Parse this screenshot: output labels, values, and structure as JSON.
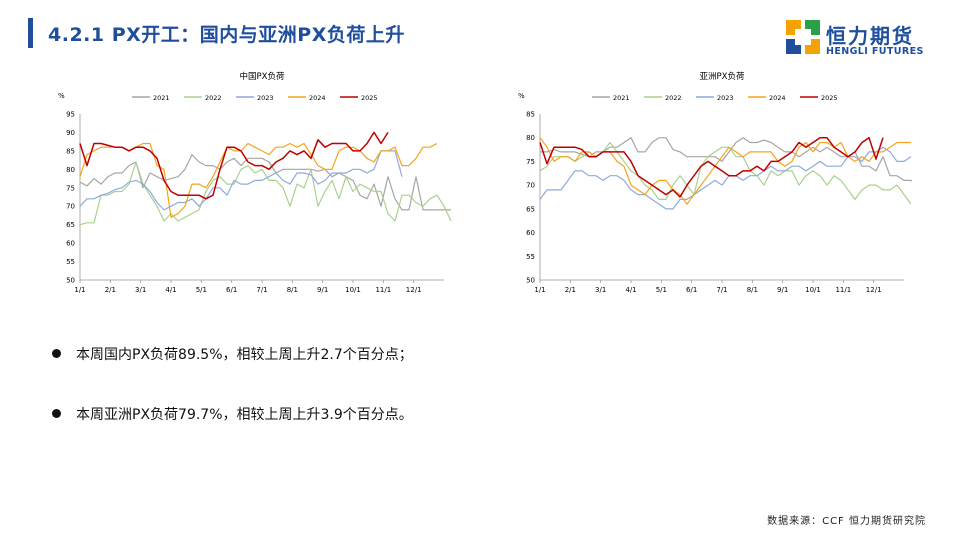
{
  "header": {
    "title": "4.2.1 PX开工：国内与亚洲PX负荷上升"
  },
  "logo": {
    "cn": "恒力期货",
    "en": "HENGLI FUTURES",
    "colors": [
      "#f5a300",
      "#2aa048",
      "#1f4e9c"
    ]
  },
  "colors": {
    "2021": "#a6a6a6",
    "2022": "#a9d18e",
    "2023": "#8faadc",
    "2024": "#f4a41c",
    "2025": "#c00000"
  },
  "chart_data": [
    {
      "type": "line",
      "title": "中国PX负荷",
      "ylabel": "%",
      "ylim": [
        50,
        95
      ],
      "yticks": [
        50,
        55,
        60,
        65,
        70,
        75,
        80,
        85,
        90,
        95
      ],
      "xticks": [
        "1/1",
        "2/1",
        "3/1",
        "4/1",
        "5/1",
        "6/1",
        "7/1",
        "8/1",
        "9/1",
        "10/1",
        "11/1",
        "12/1"
      ],
      "grid": false,
      "legend": "top",
      "series": [
        {
          "name": "2021",
          "values": [
            76.5,
            75.5,
            77.5,
            76,
            78,
            79,
            79,
            81,
            82,
            75,
            79,
            78,
            77,
            77.5,
            78,
            80,
            84,
            82,
            81,
            81,
            80,
            82,
            83,
            81,
            83,
            83,
            83,
            82,
            79,
            80,
            80,
            80,
            80,
            80,
            79.5,
            80,
            78,
            79,
            78,
            77,
            73,
            72,
            76,
            70,
            78,
            72,
            69,
            69,
            78,
            69,
            69,
            69,
            69,
            69
          ]
        },
        {
          "name": "2022",
          "values": [
            65,
            65.5,
            65.5,
            73,
            73,
            74,
            74,
            76,
            82,
            76,
            73,
            70,
            66,
            68,
            66,
            67,
            68,
            69,
            74,
            77,
            78,
            76,
            76,
            80,
            81,
            79,
            80,
            77,
            77,
            75,
            70,
            76,
            75,
            80,
            70,
            74,
            77,
            72,
            78,
            74,
            76,
            75,
            74,
            74,
            68,
            66,
            73,
            73,
            71,
            70,
            72,
            73,
            70,
            66
          ]
        },
        {
          "name": "2023",
          "values": [
            70,
            72,
            72,
            73,
            73.5,
            74.5,
            75,
            76.5,
            77,
            76,
            74,
            71,
            69,
            70,
            71,
            71,
            72,
            70,
            72,
            75,
            75,
            73,
            77,
            76,
            76,
            77,
            77,
            78,
            79,
            77,
            76,
            79,
            79,
            78.5,
            76,
            77,
            79,
            79,
            79,
            80,
            80,
            79,
            80,
            85,
            85,
            85,
            78
          ]
        },
        {
          "name": "2024",
          "values": [
            78,
            84,
            85,
            86,
            86,
            86,
            86,
            85,
            86,
            87,
            87,
            81,
            80,
            67,
            68,
            70,
            76,
            76,
            75,
            78,
            82,
            86,
            85,
            85,
            87,
            86,
            85,
            84,
            86,
            86,
            87,
            86,
            87,
            84,
            81,
            80,
            80,
            85,
            86,
            86,
            85,
            83,
            82,
            85,
            85,
            86,
            81,
            81,
            83,
            86,
            86,
            87
          ]
        },
        {
          "name": "2025",
          "values": [
            87,
            81,
            87,
            87,
            86.5,
            86,
            86,
            85,
            86,
            86,
            85,
            83,
            77,
            74,
            73,
            73,
            73,
            73,
            72,
            73,
            80,
            86,
            86,
            85,
            82,
            81,
            81,
            80,
            82,
            83,
            85,
            84,
            85,
            83,
            88,
            86,
            87,
            87,
            87,
            85,
            85,
            87,
            90,
            87,
            90
          ]
        }
      ]
    },
    {
      "type": "line",
      "title": "亚洲PX负荷",
      "ylabel": "%",
      "ylim": [
        50,
        85
      ],
      "yticks": [
        50,
        55,
        60,
        65,
        70,
        75,
        80,
        85
      ],
      "xticks": [
        "1/1",
        "2/1",
        "3/1",
        "4/1",
        "5/1",
        "6/1",
        "7/1",
        "8/1",
        "9/1",
        "10/1",
        "11/1",
        "12/1"
      ],
      "grid": false,
      "legend": "top",
      "series": [
        {
          "name": "2021",
          "values": [
            77,
            77,
            77.5,
            77,
            77,
            77,
            76.5,
            76,
            77,
            77,
            78,
            78,
            79,
            80,
            77,
            77,
            79,
            80,
            80,
            77.5,
            77,
            76,
            76,
            76,
            76,
            76,
            75,
            77,
            79,
            80,
            79,
            79,
            79.5,
            79,
            78,
            77,
            77,
            76,
            77,
            78,
            77,
            78,
            77,
            76,
            76,
            77,
            74,
            74,
            73,
            76,
            72,
            72,
            71,
            71,
            70
          ]
        },
        {
          "name": "2022",
          "values": [
            73,
            74,
            76,
            76,
            76,
            75,
            76,
            77,
            76,
            77,
            79,
            77,
            75,
            73,
            72,
            70,
            69,
            67,
            67,
            70,
            72,
            70,
            68,
            74,
            76,
            77,
            78,
            78,
            76,
            76,
            73,
            72,
            70,
            73,
            72,
            73,
            73,
            70,
            72,
            73,
            72,
            70,
            72,
            71,
            69,
            67,
            69,
            70,
            70,
            69,
            69,
            70,
            68,
            66
          ]
        },
        {
          "name": "2023",
          "values": [
            67,
            69,
            69,
            69,
            71,
            73,
            73,
            72,
            72,
            71,
            72,
            72,
            71,
            69,
            68,
            68,
            67,
            66,
            65,
            65,
            67,
            67,
            68,
            69,
            70,
            71,
            70,
            72,
            72,
            71,
            72,
            72,
            73,
            74,
            73,
            73,
            74,
            74,
            73,
            74,
            75,
            74,
            74,
            74,
            76,
            76,
            75,
            77,
            77,
            78,
            77,
            75,
            75,
            76
          ]
        },
        {
          "name": "2024",
          "values": [
            80,
            78,
            75,
            76,
            76,
            75,
            77,
            77,
            76,
            77,
            77,
            75,
            74,
            70,
            69,
            68,
            70,
            71,
            71,
            69,
            68,
            66,
            68,
            70,
            72,
            74,
            76,
            78,
            77,
            76,
            77,
            77,
            77,
            77,
            75,
            74,
            75,
            78,
            79,
            77,
            79,
            79,
            78,
            79,
            76,
            75,
            76,
            75,
            77,
            77,
            78,
            79,
            79,
            79
          ]
        },
        {
          "name": "2025",
          "values": [
            79,
            74.5,
            78,
            78,
            78,
            78,
            77.5,
            76,
            76,
            77,
            77,
            77,
            77,
            75,
            72,
            71,
            70,
            69,
            68,
            69,
            67.5,
            70,
            72,
            74,
            75,
            74,
            73,
            72,
            72,
            73,
            73,
            74,
            73,
            75,
            75,
            76,
            77,
            79,
            78,
            79,
            80,
            80,
            78,
            77,
            76,
            77,
            79,
            80,
            75.5,
            80
          ]
        }
      ]
    }
  ],
  "bullets": [
    "本周国内PX负荷89.5%，相较上周上升2.7个百分点；",
    "本周亚洲PX负荷79.7%，相较上周上升3.9个百分点。"
  ],
  "source": "数据来源：CCF 恒力期货研究院"
}
